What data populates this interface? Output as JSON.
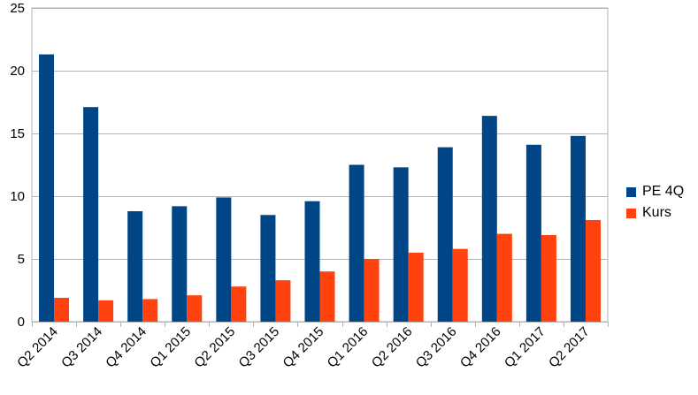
{
  "chart_data": {
    "type": "bar",
    "title": "",
    "xlabel": "",
    "ylabel": "",
    "ylim": [
      0,
      25
    ],
    "yticks": [
      0,
      5,
      10,
      15,
      20,
      25
    ],
    "grid": true,
    "legend_position": "right",
    "categories": [
      "Q2 2014",
      "Q3 2014",
      "Q4 2014",
      "Q1 2015",
      "Q2 2015",
      "Q3 2015",
      "Q4 2015",
      "Q1 2016",
      "Q2 2016",
      "Q3 2016",
      "Q4 2016",
      "Q1 2017",
      "Q2 2017"
    ],
    "series": [
      {
        "name": "PE 4Q",
        "color": "#004586",
        "values": [
          21.3,
          17.1,
          8.8,
          9.2,
          9.9,
          8.5,
          9.6,
          12.5,
          12.3,
          13.9,
          16.4,
          14.1,
          14.8
        ]
      },
      {
        "name": "Kurs",
        "color": "#FF420E",
        "values": [
          1.9,
          1.7,
          1.8,
          2.1,
          2.8,
          3.3,
          4.0,
          5.0,
          5.5,
          5.8,
          7.0,
          6.9,
          8.1
        ]
      }
    ]
  }
}
